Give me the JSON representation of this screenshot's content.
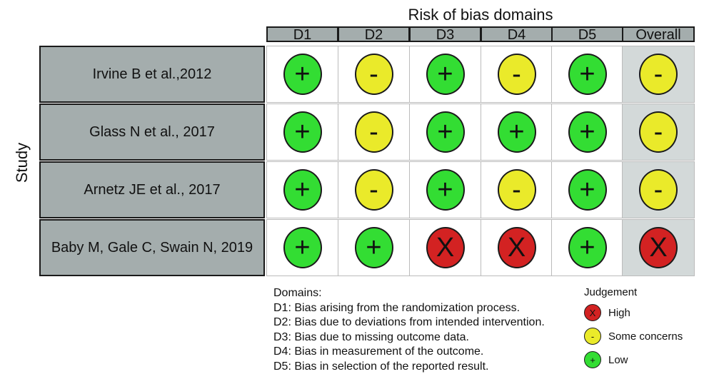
{
  "title": "Risk of bias domains",
  "y_axis_label": "Study",
  "colors": {
    "high": "#d32222",
    "some": "#eaea2a",
    "low": "#33dd33"
  },
  "symbols": {
    "high": "X",
    "some": "-",
    "low": "+"
  },
  "legend": {
    "domains_title": "Domains:",
    "domains": [
      "D1: Bias arising from the randomization process.",
      "D2: Bias due to deviations from intended intervention.",
      "D3: Bias due to missing outcome data.",
      "D4: Bias in measurement of the outcome.",
      "D5: Bias in selection of the reported result."
    ],
    "judgement_title": "Judgement",
    "items": [
      {
        "key": "high",
        "symbol": "X",
        "label": "High"
      },
      {
        "key": "some",
        "symbol": "-",
        "label": "Some concerns"
      },
      {
        "key": "low",
        "symbol": "+",
        "label": "Low"
      }
    ]
  },
  "chart_data": {
    "type": "table",
    "title": "Risk of bias domains",
    "ylabel": "Study",
    "columns": [
      "D1",
      "D2",
      "D3",
      "D4",
      "D5",
      "Overall"
    ],
    "rows": [
      {
        "study": "Irvine B et al.,2012",
        "judgements": [
          "low",
          "some",
          "low",
          "some",
          "low",
          "some"
        ]
      },
      {
        "study": "Glass N et al., 2017",
        "judgements": [
          "low",
          "some",
          "low",
          "low",
          "low",
          "some"
        ]
      },
      {
        "study": "Arnetz JE et al., 2017",
        "judgements": [
          "low",
          "some",
          "low",
          "some",
          "low",
          "some"
        ]
      },
      {
        "study": "Baby M, Gale C, Swain N, 2019",
        "judgements": [
          "low",
          "low",
          "high",
          "high",
          "low",
          "high"
        ]
      }
    ]
  }
}
